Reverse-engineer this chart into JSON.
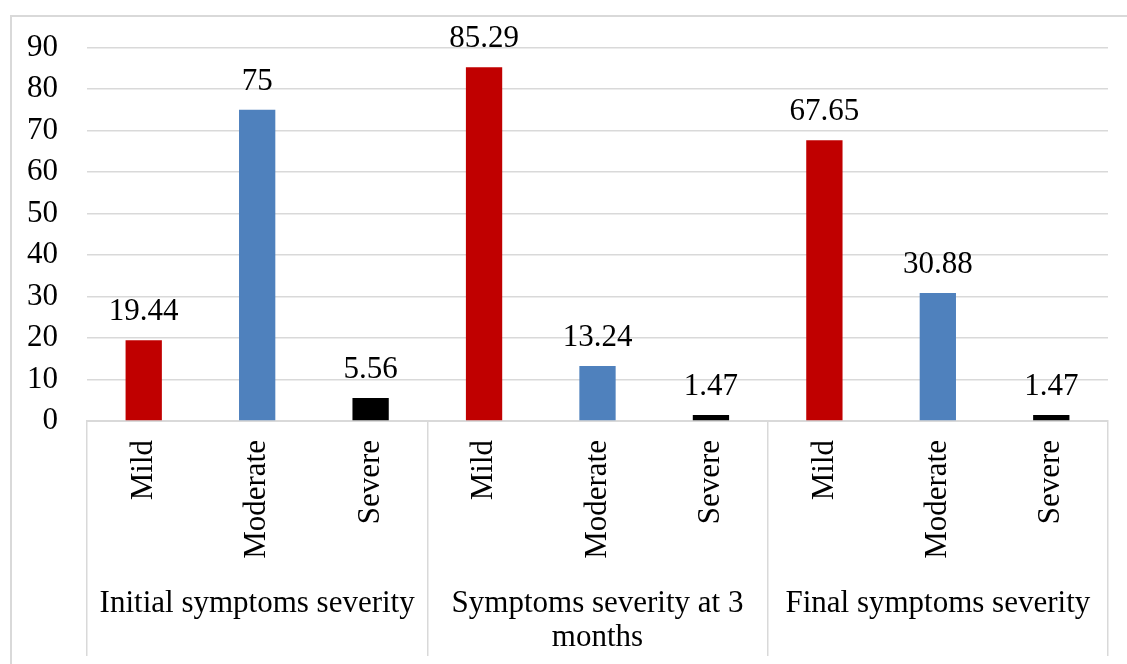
{
  "chart_data": {
    "type": "bar",
    "categories": [
      "Initial symptoms severity",
      "Symptoms severity at 3 months",
      "Final symptoms severity"
    ],
    "series": [
      {
        "name": "Mild",
        "color": "#c00000",
        "values": [
          19.44,
          85.29,
          67.65
        ]
      },
      {
        "name": "Moderate",
        "color": "#4f81bd",
        "values": [
          75,
          13.24,
          30.88
        ]
      },
      {
        "name": "Severe",
        "color": "#000000",
        "values": [
          5.56,
          1.47,
          1.47
        ]
      }
    ],
    "ylim": [
      0,
      90
    ],
    "yticks": [
      0,
      10,
      20,
      30,
      40,
      50,
      60,
      70,
      80,
      90
    ],
    "grid": "y",
    "data_labels": true
  }
}
